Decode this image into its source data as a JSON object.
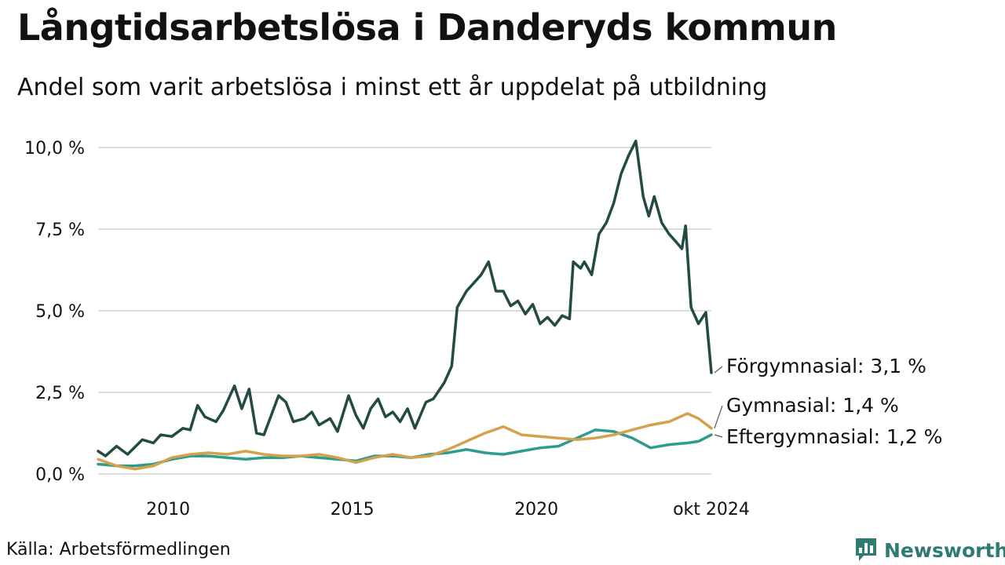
{
  "title": "Långtidsarbetslösa i Danderyds kommun",
  "subtitle": "Andel som varit arbetslösa i minst ett år uppdelat på utbildning",
  "source": "Källa: Arbetsförmedlingen",
  "brand": {
    "name": "Newsworthy",
    "icon": "bar-chart-speech-icon",
    "color": "#2f7a73"
  },
  "chart_data": {
    "type": "line",
    "title": "Långtidsarbetslösa i Danderyds kommun",
    "subtitle": "Andel som varit arbetslösa i minst ett år uppdelat på utbildning",
    "xlabel": "",
    "ylabel": "",
    "xlim": [
      2008.1,
      2024.75
    ],
    "ylim": [
      0,
      10.2
    ],
    "grid": true,
    "y_ticks": [
      {
        "value": 0,
        "label": "0,0 %"
      },
      {
        "value": 2.5,
        "label": "2,5 %"
      },
      {
        "value": 5,
        "label": "5,0 %"
      },
      {
        "value": 7.5,
        "label": "7,5 %"
      },
      {
        "value": 10,
        "label": "10,0 %"
      }
    ],
    "x_ticks": [
      {
        "value": 2010,
        "label": "2010"
      },
      {
        "value": 2015,
        "label": "2015"
      },
      {
        "value": 2020,
        "label": "2020"
      },
      {
        "value": 2024.75,
        "label": "okt 2024"
      }
    ],
    "series": [
      {
        "name": "Förgymnasial",
        "label": "Förgymnasial: 3,1 %",
        "color": "#234b44",
        "points": [
          [
            2008.1,
            0.7
          ],
          [
            2008.3,
            0.55
          ],
          [
            2008.6,
            0.85
          ],
          [
            2008.9,
            0.6
          ],
          [
            2009.3,
            1.05
          ],
          [
            2009.6,
            0.95
          ],
          [
            2009.8,
            1.2
          ],
          [
            2010.1,
            1.15
          ],
          [
            2010.4,
            1.4
          ],
          [
            2010.6,
            1.35
          ],
          [
            2010.8,
            2.1
          ],
          [
            2011.0,
            1.75
          ],
          [
            2011.3,
            1.6
          ],
          [
            2011.5,
            1.95
          ],
          [
            2011.8,
            2.7
          ],
          [
            2012.0,
            2.0
          ],
          [
            2012.2,
            2.6
          ],
          [
            2012.4,
            1.25
          ],
          [
            2012.6,
            1.2
          ],
          [
            2012.8,
            1.8
          ],
          [
            2013.0,
            2.4
          ],
          [
            2013.2,
            2.2
          ],
          [
            2013.4,
            1.6
          ],
          [
            2013.7,
            1.7
          ],
          [
            2013.9,
            1.9
          ],
          [
            2014.1,
            1.5
          ],
          [
            2014.4,
            1.7
          ],
          [
            2014.6,
            1.3
          ],
          [
            2014.9,
            2.4
          ],
          [
            2015.1,
            1.8
          ],
          [
            2015.3,
            1.4
          ],
          [
            2015.5,
            2.0
          ],
          [
            2015.7,
            2.3
          ],
          [
            2015.9,
            1.75
          ],
          [
            2016.1,
            1.9
          ],
          [
            2016.3,
            1.6
          ],
          [
            2016.5,
            2.0
          ],
          [
            2016.7,
            1.4
          ],
          [
            2017.0,
            2.2
          ],
          [
            2017.2,
            2.3
          ],
          [
            2017.5,
            2.8
          ],
          [
            2017.7,
            3.3
          ],
          [
            2017.85,
            5.1
          ],
          [
            2018.1,
            5.6
          ],
          [
            2018.3,
            5.85
          ],
          [
            2018.5,
            6.1
          ],
          [
            2018.7,
            6.5
          ],
          [
            2018.9,
            5.6
          ],
          [
            2019.1,
            5.6
          ],
          [
            2019.3,
            5.15
          ],
          [
            2019.5,
            5.3
          ],
          [
            2019.7,
            4.9
          ],
          [
            2019.9,
            5.2
          ],
          [
            2020.1,
            4.6
          ],
          [
            2020.3,
            4.8
          ],
          [
            2020.5,
            4.55
          ],
          [
            2020.7,
            4.85
          ],
          [
            2020.9,
            4.75
          ],
          [
            2021.0,
            6.5
          ],
          [
            2021.2,
            6.3
          ],
          [
            2021.3,
            6.5
          ],
          [
            2021.5,
            6.1
          ],
          [
            2021.7,
            7.35
          ],
          [
            2021.9,
            7.7
          ],
          [
            2022.1,
            8.3
          ],
          [
            2022.3,
            9.2
          ],
          [
            2022.5,
            9.75
          ],
          [
            2022.7,
            10.2
          ],
          [
            2022.9,
            8.5
          ],
          [
            2023.05,
            7.9
          ],
          [
            2023.2,
            8.5
          ],
          [
            2023.4,
            7.7
          ],
          [
            2023.6,
            7.35
          ],
          [
            2023.8,
            7.1
          ],
          [
            2023.95,
            6.9
          ],
          [
            2024.05,
            7.6
          ],
          [
            2024.2,
            5.1
          ],
          [
            2024.4,
            4.6
          ],
          [
            2024.6,
            4.95
          ],
          [
            2024.75,
            3.1
          ]
        ]
      },
      {
        "name": "Gymnasial",
        "label": "Gymnasial: 1,4 %",
        "color": "#d4a24c",
        "points": [
          [
            2008.1,
            0.45
          ],
          [
            2008.6,
            0.25
          ],
          [
            2009.1,
            0.15
          ],
          [
            2009.6,
            0.25
          ],
          [
            2010.1,
            0.5
          ],
          [
            2010.6,
            0.6
          ],
          [
            2011.1,
            0.65
          ],
          [
            2011.6,
            0.6
          ],
          [
            2012.1,
            0.7
          ],
          [
            2012.6,
            0.6
          ],
          [
            2013.1,
            0.55
          ],
          [
            2013.6,
            0.55
          ],
          [
            2014.1,
            0.6
          ],
          [
            2014.6,
            0.5
          ],
          [
            2015.1,
            0.35
          ],
          [
            2015.6,
            0.5
          ],
          [
            2016.1,
            0.6
          ],
          [
            2016.6,
            0.5
          ],
          [
            2017.1,
            0.55
          ],
          [
            2017.6,
            0.75
          ],
          [
            2018.1,
            1.0
          ],
          [
            2018.6,
            1.25
          ],
          [
            2019.1,
            1.45
          ],
          [
            2019.6,
            1.2
          ],
          [
            2020.1,
            1.15
          ],
          [
            2020.6,
            1.1
          ],
          [
            2021.1,
            1.05
          ],
          [
            2021.6,
            1.1
          ],
          [
            2022.1,
            1.2
          ],
          [
            2022.6,
            1.35
          ],
          [
            2023.1,
            1.5
          ],
          [
            2023.6,
            1.6
          ],
          [
            2024.1,
            1.85
          ],
          [
            2024.4,
            1.7
          ],
          [
            2024.75,
            1.4
          ]
        ]
      },
      {
        "name": "Eftergymnasial",
        "label": "Eftergymnasial: 1,2 %",
        "color": "#2e9b8c",
        "points": [
          [
            2008.1,
            0.3
          ],
          [
            2008.6,
            0.25
          ],
          [
            2009.1,
            0.25
          ],
          [
            2009.6,
            0.3
          ],
          [
            2010.1,
            0.45
          ],
          [
            2010.6,
            0.55
          ],
          [
            2011.1,
            0.55
          ],
          [
            2011.6,
            0.5
          ],
          [
            2012.1,
            0.45
          ],
          [
            2012.6,
            0.5
          ],
          [
            2013.1,
            0.5
          ],
          [
            2013.6,
            0.55
          ],
          [
            2014.1,
            0.5
          ],
          [
            2014.6,
            0.45
          ],
          [
            2015.1,
            0.4
          ],
          [
            2015.6,
            0.55
          ],
          [
            2016.1,
            0.55
          ],
          [
            2016.6,
            0.5
          ],
          [
            2017.1,
            0.6
          ],
          [
            2017.6,
            0.65
          ],
          [
            2018.1,
            0.75
          ],
          [
            2018.6,
            0.65
          ],
          [
            2019.1,
            0.6
          ],
          [
            2019.6,
            0.7
          ],
          [
            2020.1,
            0.8
          ],
          [
            2020.6,
            0.85
          ],
          [
            2021.1,
            1.1
          ],
          [
            2021.6,
            1.35
          ],
          [
            2022.1,
            1.3
          ],
          [
            2022.6,
            1.1
          ],
          [
            2023.1,
            0.8
          ],
          [
            2023.6,
            0.9
          ],
          [
            2024.1,
            0.95
          ],
          [
            2024.4,
            1.0
          ],
          [
            2024.75,
            1.2
          ]
        ]
      }
    ]
  }
}
